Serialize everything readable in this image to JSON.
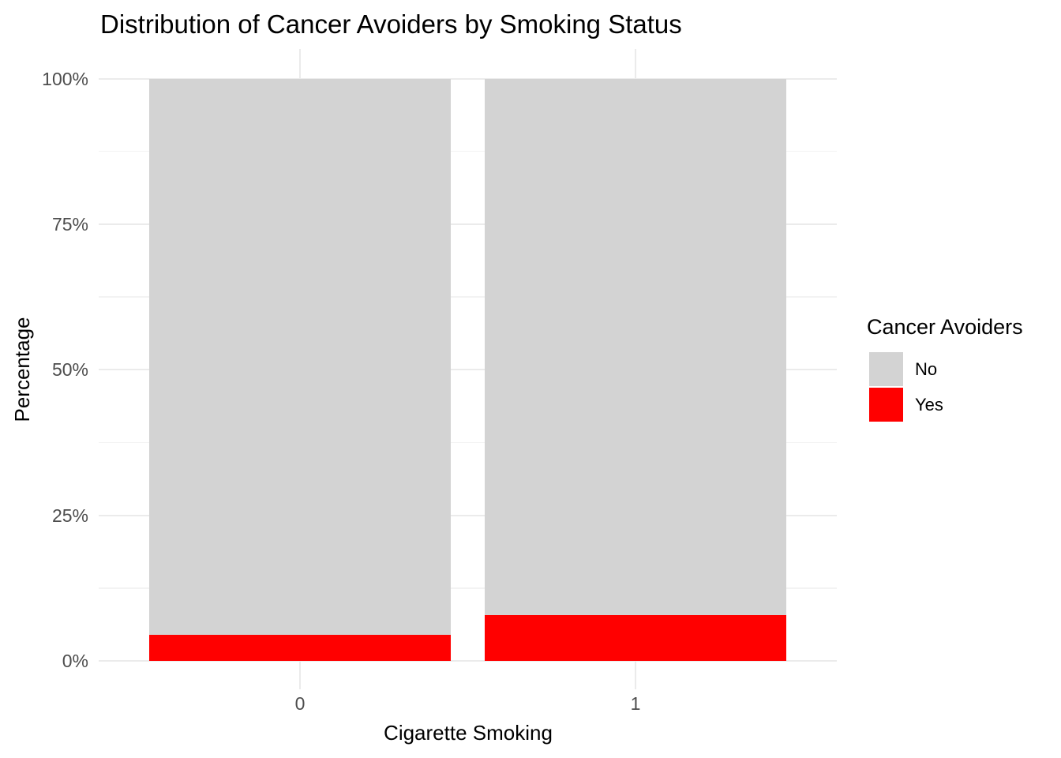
{
  "title": "Distribution of Cancer Avoiders by Smoking Status",
  "chart_data": {
    "type": "bar",
    "variant": "stacked-100-percent",
    "title": "Distribution of Cancer Avoiders by Smoking Status",
    "xlabel": "Cigarette Smoking",
    "ylabel": "Percentage",
    "categories": [
      "0",
      "1"
    ],
    "series": [
      {
        "name": "No",
        "color": "#d3d3d3",
        "values": [
          95.5,
          92.1
        ]
      },
      {
        "name": "Yes",
        "color": "#ff0000",
        "values": [
          4.5,
          7.9
        ]
      }
    ],
    "stack_bottom_to_top": [
      "Yes",
      "No"
    ],
    "ylim": [
      0,
      100
    ],
    "y_major_ticks": [
      {
        "value": 0,
        "label": "0%"
      },
      {
        "value": 25,
        "label": "25%"
      },
      {
        "value": 50,
        "label": "50%"
      },
      {
        "value": 75,
        "label": "75%"
      },
      {
        "value": 100,
        "label": "100%"
      }
    ],
    "y_minor_ticks": [
      12.5,
      37.5,
      62.5,
      87.5
    ],
    "grid": "horizontal major+minor, vertical major at category centers",
    "legend": {
      "title": "Cancer Avoiders",
      "position": "right"
    }
  },
  "colors": {
    "background": "#ffffff",
    "bar_no": "#d3d3d3",
    "bar_yes": "#ff0000",
    "grid_major": "#ebebeb",
    "grid_minor": "#f3f3f3",
    "tick_label": "#4d4d4d",
    "text": "#000000"
  }
}
